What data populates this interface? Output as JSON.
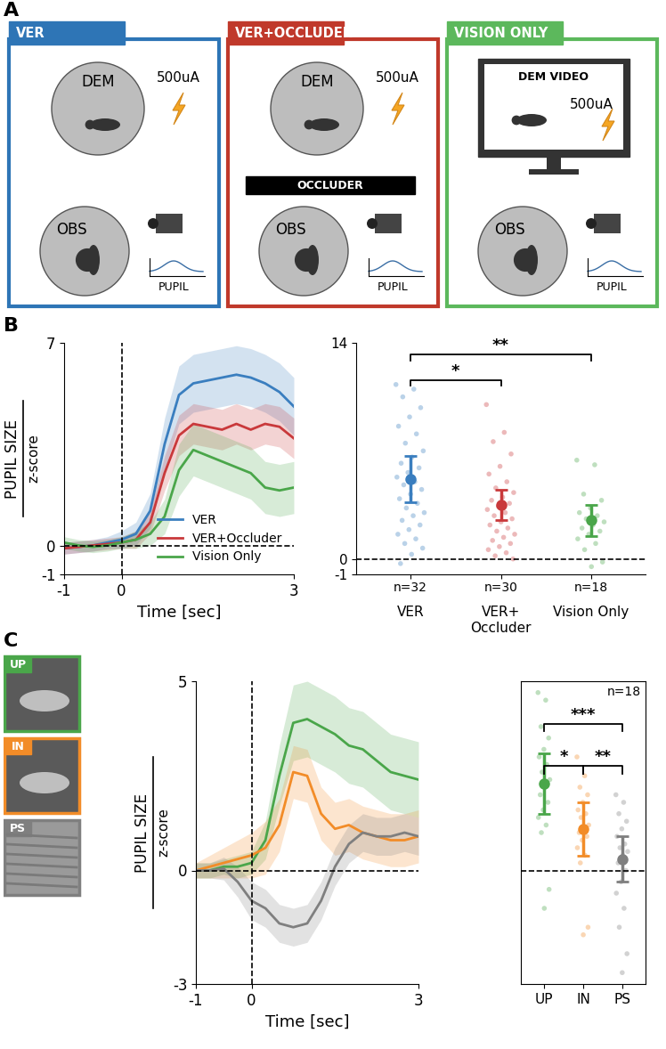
{
  "panel_labels": [
    "A",
    "B",
    "C"
  ],
  "panel_a": [
    {
      "title": "VER",
      "color": "#2e75b6",
      "demonstrator": "DEM",
      "stimulus": "500uA",
      "observer": "OBS",
      "measure": "PUPIL"
    },
    {
      "title": "VER+OCCLUDER",
      "color": "#c0392b",
      "demonstrator": "DEM",
      "stimulus": "500uA",
      "occluder": "OCCLUDER",
      "observer": "OBS",
      "measure": "PUPIL"
    },
    {
      "title": "VISION ONLY",
      "color": "#5cb85c",
      "screen": "DEM VIDEO",
      "stimulus": "500uA",
      "observer": "OBS",
      "measure": "PUPIL"
    }
  ],
  "chart_data": [
    {
      "type": "line",
      "x_label": "Time [sec]",
      "y_label": "PUPIL SIZE",
      "y_unit": "z-score",
      "x": [
        -1,
        -0.75,
        -0.5,
        -0.25,
        0,
        0.25,
        0.5,
        0.75,
        1,
        1.25,
        1.5,
        1.75,
        2,
        2.25,
        2.5,
        2.75,
        3
      ],
      "series": [
        {
          "name": "VER",
          "color": "#3a7ebf",
          "values": [
            -0.1,
            -0.05,
            0.0,
            0.1,
            0.2,
            0.4,
            1.2,
            3.5,
            5.2,
            5.6,
            5.7,
            5.8,
            5.9,
            5.8,
            5.6,
            5.3,
            4.8
          ],
          "error": [
            0.2,
            0.2,
            0.2,
            0.2,
            0.3,
            0.4,
            0.6,
            0.9,
            1.0,
            1.0,
            1.0,
            1.0,
            1.0,
            1.0,
            1.0,
            1.0,
            1.0
          ]
        },
        {
          "name": "VER+Occluder",
          "color": "#c9393b",
          "values": [
            -0.1,
            -0.05,
            0.0,
            0.05,
            0.1,
            0.2,
            0.8,
            2.5,
            3.8,
            4.2,
            4.1,
            4.0,
            4.2,
            4.0,
            4.2,
            4.1,
            3.7
          ],
          "error": [
            0.2,
            0.2,
            0.2,
            0.2,
            0.2,
            0.3,
            0.4,
            0.6,
            0.7,
            0.7,
            0.7,
            0.7,
            0.7,
            0.7,
            0.7,
            0.7,
            0.7
          ]
        },
        {
          "name": "Vision Only",
          "color": "#4aa64a",
          "values": [
            0.1,
            0.0,
            -0.05,
            0.0,
            0.1,
            0.2,
            0.4,
            1.0,
            2.6,
            3.3,
            3.1,
            2.9,
            2.7,
            2.5,
            2.0,
            1.9,
            2.0
          ],
          "error": [
            0.2,
            0.2,
            0.2,
            0.2,
            0.2,
            0.3,
            0.4,
            0.6,
            0.9,
            0.9,
            0.9,
            0.9,
            0.9,
            0.9,
            0.9,
            0.9,
            0.9
          ]
        }
      ],
      "xlim": [
        -1,
        3
      ],
      "xticks": [
        -1,
        0,
        3
      ],
      "ylim": [
        -1,
        7
      ],
      "yticks": [
        -1,
        0,
        7
      ],
      "reference_lines": {
        "x": 0,
        "y": 0
      },
      "legend": "lower right"
    },
    {
      "type": "strip",
      "categories": [
        "VER",
        "VER+\nOccluder",
        "Vision Only"
      ],
      "colors": [
        "#3a7ebf",
        "#c9393b",
        "#4aa64a"
      ],
      "points": [
        [
          11.3,
          11.0,
          10.5,
          9.8,
          9.2,
          8.6,
          8.1,
          7.5,
          7.0,
          6.6,
          6.2,
          5.9,
          5.6,
          5.3,
          5.0,
          4.8,
          4.5,
          4.2,
          3.9,
          3.6,
          3.3,
          3.0,
          2.8,
          2.5,
          2.2,
          1.9,
          1.6,
          1.3,
          1.0,
          0.7,
          0.3,
          -0.3
        ],
        [
          10.0,
          8.2,
          7.6,
          6.8,
          6.0,
          5.5,
          5.0,
          4.6,
          4.3,
          4.0,
          3.8,
          3.6,
          3.4,
          3.2,
          3.0,
          2.8,
          2.6,
          2.4,
          2.2,
          2.0,
          1.8,
          1.6,
          1.4,
          1.2,
          1.0,
          0.8,
          0.6,
          0.4,
          0.2,
          0.0
        ],
        [
          6.4,
          6.1,
          4.2,
          3.8,
          3.3,
          3.0,
          2.8,
          2.6,
          2.4,
          2.2,
          2.0,
          1.8,
          1.6,
          1.3,
          1.0,
          0.6,
          -0.2,
          -0.5
        ]
      ],
      "means": [
        5.2,
        3.5,
        2.5
      ],
      "errors": [
        1.5,
        1.0,
        1.0
      ],
      "n_labels": [
        "n=32",
        "n=30",
        "n=18"
      ],
      "significance": [
        {
          "pair": [
            0,
            1
          ],
          "label": "*"
        },
        {
          "pair": [
            0,
            2
          ],
          "label": "**"
        }
      ],
      "ylim": [
        -1,
        14
      ],
      "yticks": [
        -1,
        0,
        14
      ],
      "reference_lines": {
        "y": 0
      }
    },
    {
      "type": "line",
      "x_label": "Time [sec]",
      "y_label": "PUPIL SIZE",
      "y_unit": "z-score",
      "x": [
        -1,
        -0.75,
        -0.5,
        -0.25,
        0,
        0.25,
        0.5,
        0.75,
        1,
        1.25,
        1.5,
        1.75,
        2,
        2.25,
        2.5,
        2.75,
        3
      ],
      "series": [
        {
          "name": "UP",
          "color": "#4aa64a",
          "values": [
            0.0,
            0.0,
            0.1,
            0.1,
            0.2,
            0.8,
            2.5,
            3.9,
            4.0,
            3.8,
            3.6,
            3.3,
            3.2,
            2.9,
            2.6,
            2.5,
            2.4
          ],
          "error": [
            0.2,
            0.2,
            0.2,
            0.3,
            0.3,
            0.5,
            0.8,
            1.0,
            1.0,
            1.0,
            1.0,
            1.0,
            1.0,
            1.0,
            1.0,
            1.0,
            1.0
          ]
        },
        {
          "name": "IN",
          "color": "#f28c28",
          "values": [
            0.0,
            0.1,
            0.2,
            0.3,
            0.4,
            0.6,
            1.2,
            2.6,
            2.5,
            1.5,
            1.1,
            1.2,
            1.0,
            0.9,
            0.8,
            0.8,
            0.9
          ],
          "error": [
            0.2,
            0.3,
            0.4,
            0.5,
            0.6,
            0.7,
            0.7,
            0.7,
            0.7,
            0.7,
            0.7,
            0.7,
            0.7,
            0.7,
            0.7,
            0.7,
            0.7
          ]
        },
        {
          "name": "PS",
          "color": "#7f7f7f",
          "values": [
            0.0,
            0.0,
            0.05,
            -0.3,
            -0.8,
            -1.0,
            -1.4,
            -1.5,
            -1.4,
            -0.8,
            0.1,
            0.7,
            1.0,
            0.9,
            0.9,
            1.0,
            0.9
          ],
          "error": [
            0.2,
            0.2,
            0.3,
            0.4,
            0.5,
            0.5,
            0.5,
            0.5,
            0.5,
            0.5,
            0.5,
            0.5,
            0.5,
            0.5,
            0.5,
            0.5,
            0.5
          ]
        }
      ],
      "xlim": [
        -1,
        3
      ],
      "xticks": [
        -1,
        0,
        3
      ],
      "ylim": [
        -3,
        5
      ],
      "yticks": [
        -3,
        0,
        5
      ],
      "reference_lines": {
        "x": 0,
        "y": 0
      }
    },
    {
      "type": "strip",
      "categories": [
        "UP",
        "IN",
        "PS"
      ],
      "colors": [
        "#4aa64a",
        "#f28c28",
        "#7f7f7f"
      ],
      "points": [
        [
          4.7,
          4.5,
          3.8,
          3.5,
          3.2,
          3.0,
          2.8,
          2.6,
          2.4,
          2.2,
          2.0,
          1.8,
          1.6,
          1.4,
          1.2,
          1.0,
          -0.5,
          -1.0
        ],
        [
          3.0,
          2.5,
          2.2,
          2.0,
          1.8,
          1.6,
          1.5,
          1.4,
          1.2,
          1.1,
          1.0,
          0.9,
          0.8,
          0.6,
          0.4,
          0.2,
          -1.5,
          -1.7
        ],
        [
          2.0,
          1.8,
          1.5,
          1.3,
          1.1,
          0.9,
          0.7,
          0.6,
          0.5,
          0.4,
          0.2,
          0.0,
          -0.3,
          -0.6,
          -1.0,
          -1.5,
          -2.2,
          -2.7
        ]
      ],
      "means": [
        2.3,
        1.1,
        0.3
      ],
      "errors": [
        0.8,
        0.7,
        0.6
      ],
      "n_label": "n=18",
      "significance": [
        {
          "pair": [
            0,
            1
          ],
          "label": "*"
        },
        {
          "pair": [
            1,
            2
          ],
          "label": "**"
        },
        {
          "pair": [
            0,
            2
          ],
          "label": "***"
        }
      ],
      "ylim": [
        -3,
        5
      ],
      "tick_labels": "x",
      "reference_lines": {
        "y": 0
      }
    }
  ]
}
